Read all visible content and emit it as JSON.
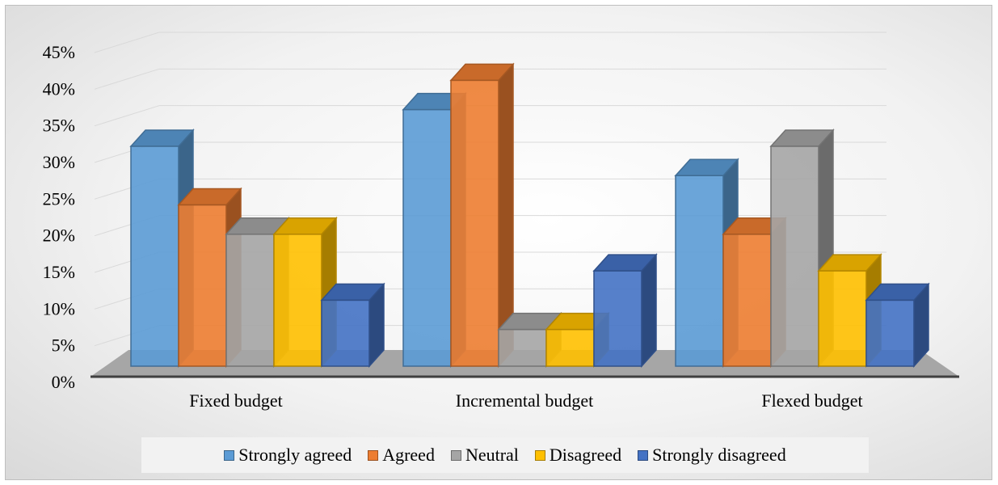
{
  "chart_data": {
    "type": "bar",
    "variant": "3d-clustered-column",
    "title": "",
    "xlabel": "",
    "ylabel": "",
    "ylim": [
      0,
      0.45
    ],
    "y_ticks": [
      "0%",
      "5%",
      "10%",
      "15%",
      "20%",
      "25%",
      "30%",
      "35%",
      "40%",
      "45%"
    ],
    "grid": true,
    "legend_position": "bottom",
    "categories": [
      "Fixed budget",
      "Incremental budget",
      "Flexed budget"
    ],
    "series": [
      {
        "name": "Strongly agreed",
        "color": "#5b9bd5",
        "values": [
          0.3,
          0.35,
          0.26
        ]
      },
      {
        "name": "Agreed",
        "color": "#ed7d31",
        "values": [
          0.22,
          0.39,
          0.18
        ]
      },
      {
        "name": "Neutral",
        "color": "#a5a5a5",
        "values": [
          0.18,
          0.05,
          0.3
        ]
      },
      {
        "name": "Disagreed",
        "color": "#ffc000",
        "values": [
          0.18,
          0.05,
          0.13
        ]
      },
      {
        "name": "Strongly disagreed",
        "color": "#4472c4",
        "values": [
          0.09,
          0.13,
          0.09
        ]
      }
    ]
  }
}
